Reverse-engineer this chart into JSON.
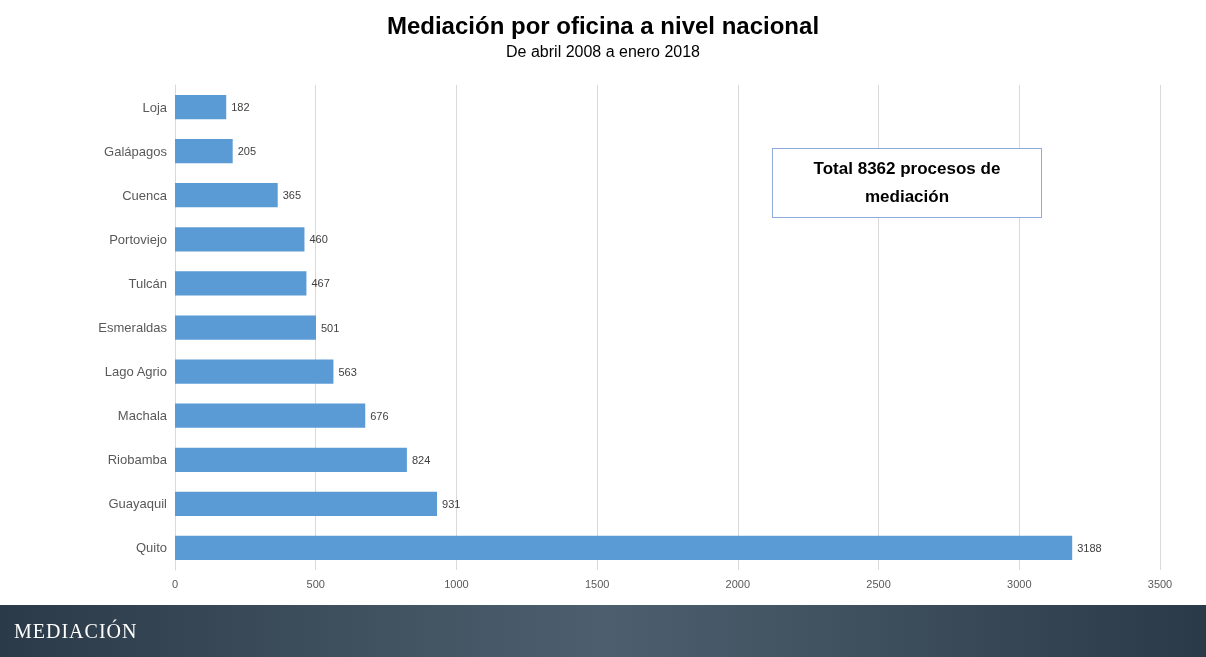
{
  "chart_data": {
    "type": "bar",
    "orientation": "horizontal",
    "title": "Mediación por oficina a nivel nacional",
    "subtitle": "De abril 2008 a enero 2018",
    "categories": [
      "Loja",
      "Galápagos",
      "Cuenca",
      "Portoviejo",
      "Tulcán",
      "Esmeraldas",
      "Lago Agrio",
      "Machala",
      "Riobamba",
      "Guayaquil",
      "Quito"
    ],
    "values": [
      182,
      205,
      365,
      460,
      467,
      501,
      563,
      676,
      824,
      931,
      3188
    ],
    "color": "#5b9bd5",
    "data_labels": true,
    "xlim": [
      0,
      3500
    ],
    "xticks": [
      0,
      500,
      1000,
      1500,
      2000,
      2500,
      3000,
      3500
    ],
    "grid": "x",
    "annotations": [
      "Total 8362 procesos de mediación",
      "MEDIACIÓN"
    ]
  }
}
